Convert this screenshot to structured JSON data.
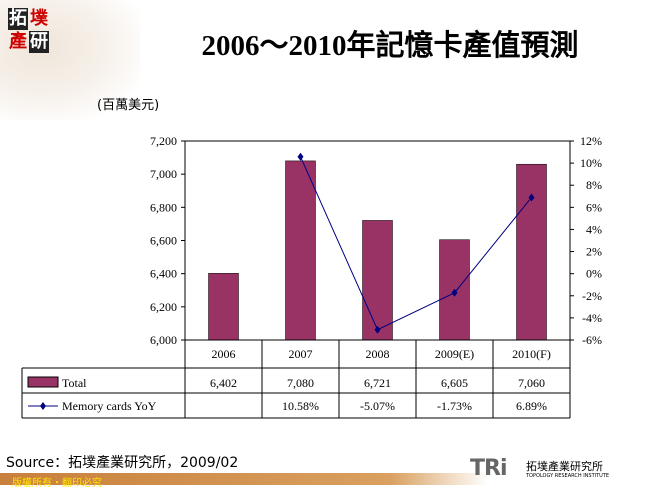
{
  "logo": {
    "chars": [
      "拓",
      "墣",
      "產",
      "研"
    ]
  },
  "title": "2006～2010年記憶卡產值預測",
  "unit_label": "(百萬美元)",
  "source": "Source：拓墣產業研究所，2009/02",
  "footer": {
    "copyright": "版權所有・翻印必究",
    "brand": "TRi",
    "brand_cn": "拓墣產業研究所",
    "brand_en": "TOPOLOGY RESEARCH INSTITUTE"
  },
  "colors": {
    "bar": "#993366",
    "line": "#000080"
  },
  "chart_data": {
    "type": "bar+line",
    "categories": [
      "2006",
      "2007",
      "2008",
      "2009(E)",
      "2010(F)"
    ],
    "series": [
      {
        "name": "Total",
        "type": "bar",
        "axis": "left",
        "values": [
          6402,
          7080,
          6721,
          6605,
          7060
        ],
        "labels": [
          "6,402",
          "7,080",
          "6,721",
          "6,605",
          "7,060"
        ]
      },
      {
        "name": "Memory cards YoY",
        "type": "line",
        "axis": "right",
        "values": [
          null,
          10.58,
          -5.07,
          -1.73,
          6.89
        ],
        "labels": [
          "",
          "10.58%",
          "-5.07%",
          "-1.73%",
          "6.89%"
        ]
      }
    ],
    "ylim_left": [
      6000,
      7200
    ],
    "yticks_left": [
      "6,000",
      "6,200",
      "6,400",
      "6,600",
      "6,800",
      "7,000",
      "7,200"
    ],
    "ylim_right": [
      -6,
      12
    ],
    "yticks_right": [
      "-6%",
      "-4%",
      "-2%",
      "0%",
      "2%",
      "4%",
      "6%",
      "8%",
      "10%",
      "12%"
    ],
    "grid": false,
    "legend": "data-table"
  }
}
